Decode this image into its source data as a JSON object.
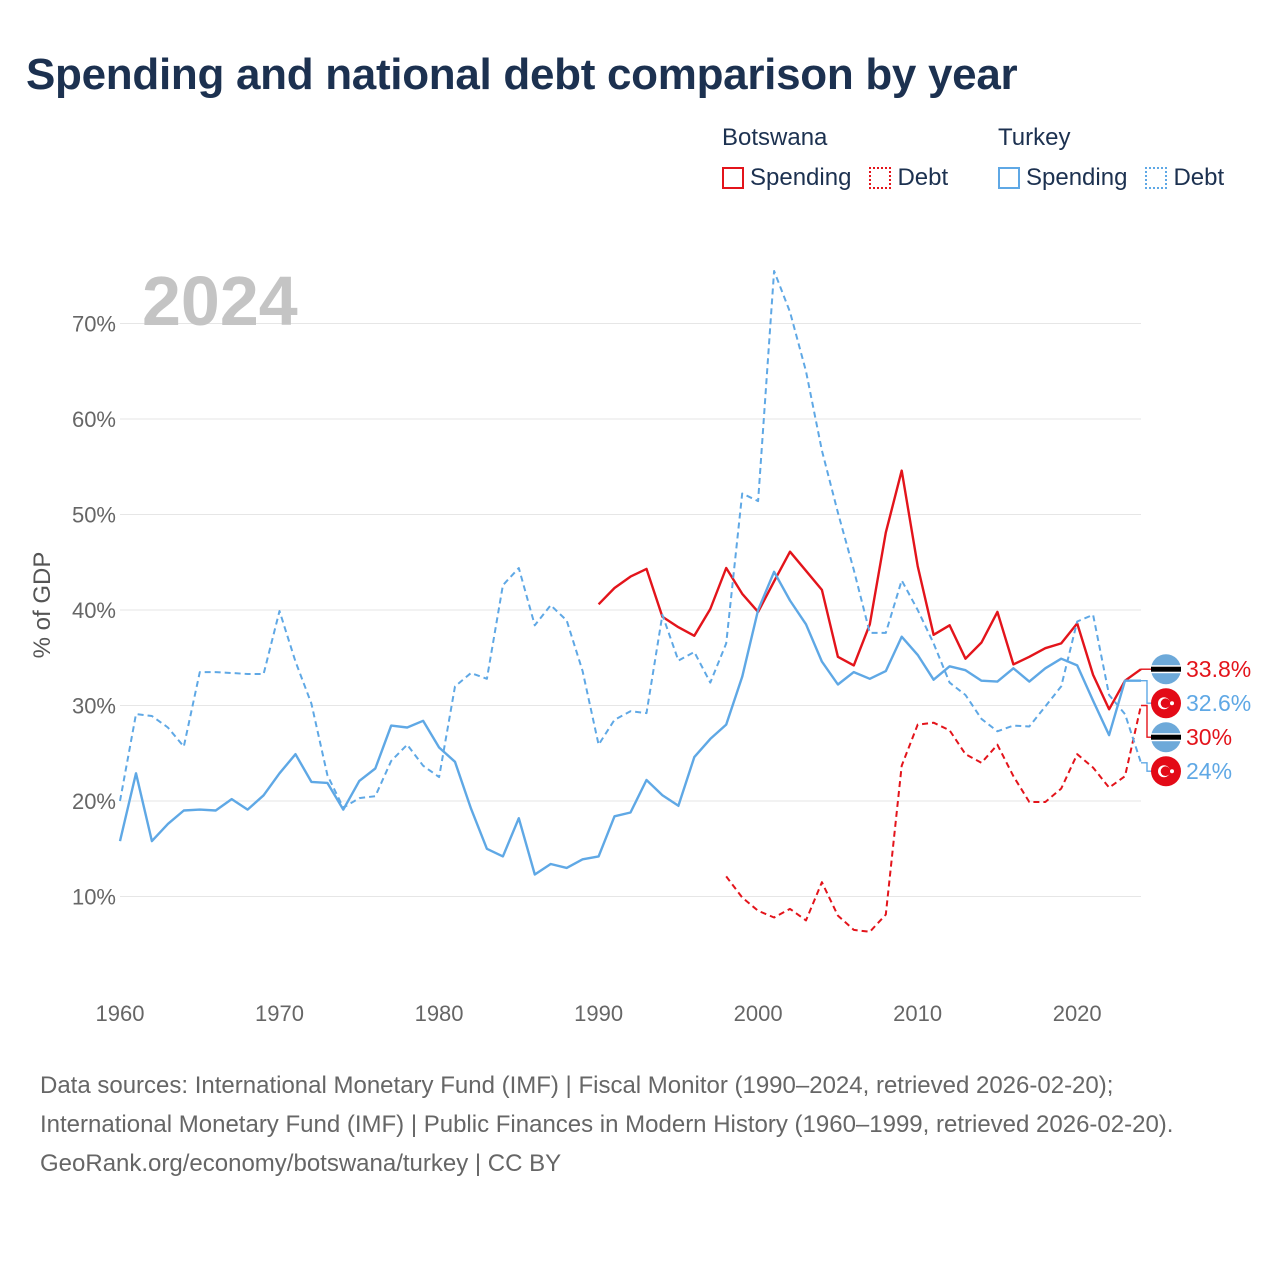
{
  "page": {
    "title": "Spending and national debt comparison by year",
    "source_line1": "Data sources: International Monetary Fund (IMF) | Fiscal Monitor (1990–2024, retrieved 2026-02-20); International Monetary Fund (IMF) | Public Finances in Modern History (1960–1999, retrieved 2026-02-20).",
    "source_line2": "GeoRank.org/economy/botswana/turkey | CC BY"
  },
  "legend": {
    "botswana": {
      "name": "Botswana",
      "spending": "Spending",
      "debt": "Debt"
    },
    "turkey": {
      "name": "Turkey",
      "spending": "Spending",
      "debt": "Debt"
    }
  },
  "colors": {
    "botswana": "#e3141b",
    "turkey": "#5fa8e5",
    "grid": "#e6e6e6",
    "year_watermark": "#c4c4c4"
  },
  "chart_data": {
    "type": "line",
    "title": "Spending and national debt comparison by year",
    "year_label": "2024",
    "ylabel": "% of GDP",
    "xlabel": "",
    "xlim": [
      1960,
      2024
    ],
    "ylim": [
      0,
      75
    ],
    "x_ticks": [
      1960,
      1970,
      1980,
      1990,
      2000,
      2010,
      2020
    ],
    "y_ticks": [
      10,
      20,
      30,
      40,
      50,
      60,
      70
    ],
    "y_tick_labels": [
      "10%",
      "20%",
      "30%",
      "40%",
      "50%",
      "60%",
      "70%"
    ],
    "series": [
      {
        "name": "Botswana Spending",
        "country": "botswana",
        "style": "solid",
        "color": "#e3141b",
        "end_label": "33.8%",
        "flag": "botswana",
        "points": [
          [
            1990,
            40.6
          ],
          [
            1991,
            42.3
          ],
          [
            1992,
            43.5
          ],
          [
            1993,
            44.3
          ],
          [
            1994,
            39.3
          ],
          [
            1995,
            38.2
          ],
          [
            1996,
            37.3
          ],
          [
            1997,
            40.1
          ],
          [
            1998,
            44.4
          ],
          [
            1999,
            41.7
          ],
          [
            2000,
            39.8
          ],
          [
            2001,
            43.0
          ],
          [
            2002,
            46.1
          ],
          [
            2003,
            44.1
          ],
          [
            2004,
            42.1
          ],
          [
            2005,
            35.1
          ],
          [
            2006,
            34.2
          ],
          [
            2007,
            38.5
          ],
          [
            2008,
            48.1
          ],
          [
            2009,
            54.6
          ],
          [
            2010,
            44.6
          ],
          [
            2011,
            37.4
          ],
          [
            2012,
            38.4
          ],
          [
            2013,
            34.9
          ],
          [
            2014,
            36.6
          ],
          [
            2015,
            39.8
          ],
          [
            2016,
            34.3
          ],
          [
            2017,
            35.1
          ],
          [
            2018,
            36.0
          ],
          [
            2019,
            36.5
          ],
          [
            2020,
            38.6
          ],
          [
            2021,
            33.2
          ],
          [
            2022,
            29.6
          ],
          [
            2023,
            32.6
          ],
          [
            2024,
            33.8
          ]
        ]
      },
      {
        "name": "Botswana Debt",
        "country": "botswana",
        "style": "dashed",
        "color": "#e3141b",
        "end_label": "30%",
        "flag": "botswana",
        "points": [
          [
            1998,
            12.1
          ],
          [
            1999,
            9.9
          ],
          [
            2000,
            8.5
          ],
          [
            2001,
            7.8
          ],
          [
            2002,
            8.7
          ],
          [
            2003,
            7.5
          ],
          [
            2004,
            11.5
          ],
          [
            2005,
            8.0
          ],
          [
            2006,
            6.5
          ],
          [
            2007,
            6.3
          ],
          [
            2008,
            8.1
          ],
          [
            2009,
            23.7
          ],
          [
            2010,
            28.0
          ],
          [
            2011,
            28.2
          ],
          [
            2012,
            27.4
          ],
          [
            2013,
            24.9
          ],
          [
            2014,
            24.0
          ],
          [
            2015,
            25.9
          ],
          [
            2016,
            22.6
          ],
          [
            2017,
            19.9
          ],
          [
            2018,
            19.9
          ],
          [
            2019,
            21.3
          ],
          [
            2020,
            24.9
          ],
          [
            2021,
            23.5
          ],
          [
            2022,
            21.4
          ],
          [
            2023,
            22.6
          ],
          [
            2024,
            30.0
          ]
        ]
      },
      {
        "name": "Turkey Spending",
        "country": "turkey",
        "style": "solid",
        "color": "#5fa8e5",
        "end_label": "32.6%",
        "flag": "turkey",
        "points": [
          [
            1960,
            15.8
          ],
          [
            1961,
            22.9
          ],
          [
            1962,
            15.8
          ],
          [
            1963,
            17.6
          ],
          [
            1964,
            19.0
          ],
          [
            1965,
            19.1
          ],
          [
            1966,
            19.0
          ],
          [
            1967,
            20.2
          ],
          [
            1968,
            19.1
          ],
          [
            1969,
            20.6
          ],
          [
            1970,
            22.9
          ],
          [
            1971,
            24.9
          ],
          [
            1972,
            22.0
          ],
          [
            1973,
            21.9
          ],
          [
            1974,
            19.1
          ],
          [
            1975,
            22.1
          ],
          [
            1976,
            23.4
          ],
          [
            1977,
            27.9
          ],
          [
            1978,
            27.7
          ],
          [
            1979,
            28.4
          ],
          [
            1980,
            25.6
          ],
          [
            1981,
            24.1
          ],
          [
            1982,
            19.2
          ],
          [
            1983,
            15.0
          ],
          [
            1984,
            14.2
          ],
          [
            1985,
            18.2
          ],
          [
            1986,
            12.3
          ],
          [
            1987,
            13.4
          ],
          [
            1988,
            13.0
          ],
          [
            1989,
            13.9
          ],
          [
            1990,
            14.2
          ],
          [
            1991,
            18.4
          ],
          [
            1992,
            18.8
          ],
          [
            1993,
            22.2
          ],
          [
            1994,
            20.6
          ],
          [
            1995,
            19.5
          ],
          [
            1996,
            24.6
          ],
          [
            1997,
            26.5
          ],
          [
            1998,
            28.0
          ],
          [
            1999,
            33.0
          ],
          [
            2000,
            40.0
          ],
          [
            2001,
            44.0
          ],
          [
            2002,
            41.0
          ],
          [
            2003,
            38.5
          ],
          [
            2004,
            34.6
          ],
          [
            2005,
            32.2
          ],
          [
            2006,
            33.5
          ],
          [
            2007,
            32.8
          ],
          [
            2008,
            33.6
          ],
          [
            2009,
            37.2
          ],
          [
            2010,
            35.3
          ],
          [
            2011,
            32.7
          ],
          [
            2012,
            34.1
          ],
          [
            2013,
            33.7
          ],
          [
            2014,
            32.6
          ],
          [
            2015,
            32.5
          ],
          [
            2016,
            33.9
          ],
          [
            2017,
            32.5
          ],
          [
            2018,
            33.9
          ],
          [
            2019,
            34.9
          ],
          [
            2020,
            34.2
          ],
          [
            2021,
            30.5
          ],
          [
            2022,
            26.9
          ],
          [
            2023,
            32.6
          ],
          [
            2024,
            32.6
          ]
        ]
      },
      {
        "name": "Turkey Debt",
        "country": "turkey",
        "style": "dashed",
        "color": "#5fa8e5",
        "end_label": "24%",
        "flag": "turkey",
        "points": [
          [
            1960,
            20.0
          ],
          [
            1961,
            29.1
          ],
          [
            1962,
            28.9
          ],
          [
            1963,
            27.7
          ],
          [
            1964,
            25.7
          ],
          [
            1965,
            33.5
          ],
          [
            1966,
            33.5
          ],
          [
            1967,
            33.4
          ],
          [
            1968,
            33.3
          ],
          [
            1969,
            33.3
          ],
          [
            1970,
            39.9
          ],
          [
            1971,
            34.6
          ],
          [
            1972,
            30.2
          ],
          [
            1973,
            22.7
          ],
          [
            1974,
            19.3
          ],
          [
            1975,
            20.3
          ],
          [
            1976,
            20.5
          ],
          [
            1977,
            24.2
          ],
          [
            1978,
            25.9
          ],
          [
            1979,
            23.7
          ],
          [
            1980,
            22.5
          ],
          [
            1981,
            32.0
          ],
          [
            1982,
            33.4
          ],
          [
            1983,
            32.8
          ],
          [
            1984,
            42.6
          ],
          [
            1985,
            44.4
          ],
          [
            1986,
            38.4
          ],
          [
            1987,
            40.5
          ],
          [
            1988,
            38.9
          ],
          [
            1989,
            33.6
          ],
          [
            1990,
            25.9
          ],
          [
            1991,
            28.5
          ],
          [
            1992,
            29.4
          ],
          [
            1993,
            29.2
          ],
          [
            1994,
            39.5
          ],
          [
            1995,
            34.7
          ],
          [
            1996,
            35.6
          ],
          [
            1997,
            32.4
          ],
          [
            1998,
            36.5
          ],
          [
            1999,
            52.2
          ],
          [
            2000,
            51.4
          ],
          [
            2001,
            75.5
          ],
          [
            2002,
            71.2
          ],
          [
            2003,
            65.0
          ],
          [
            2004,
            56.7
          ],
          [
            2005,
            50.2
          ],
          [
            2006,
            44.2
          ],
          [
            2007,
            37.6
          ],
          [
            2008,
            37.6
          ],
          [
            2009,
            43.1
          ],
          [
            2010,
            40.0
          ],
          [
            2011,
            36.5
          ],
          [
            2012,
            32.4
          ],
          [
            2013,
            31.1
          ],
          [
            2014,
            28.6
          ],
          [
            2015,
            27.3
          ],
          [
            2016,
            27.9
          ],
          [
            2017,
            27.8
          ],
          [
            2018,
            29.9
          ],
          [
            2019,
            32.0
          ],
          [
            2020,
            38.8
          ],
          [
            2021,
            39.5
          ],
          [
            2022,
            31.1
          ],
          [
            2023,
            29.1
          ],
          [
            2024,
            24.0
          ]
        ]
      }
    ]
  }
}
